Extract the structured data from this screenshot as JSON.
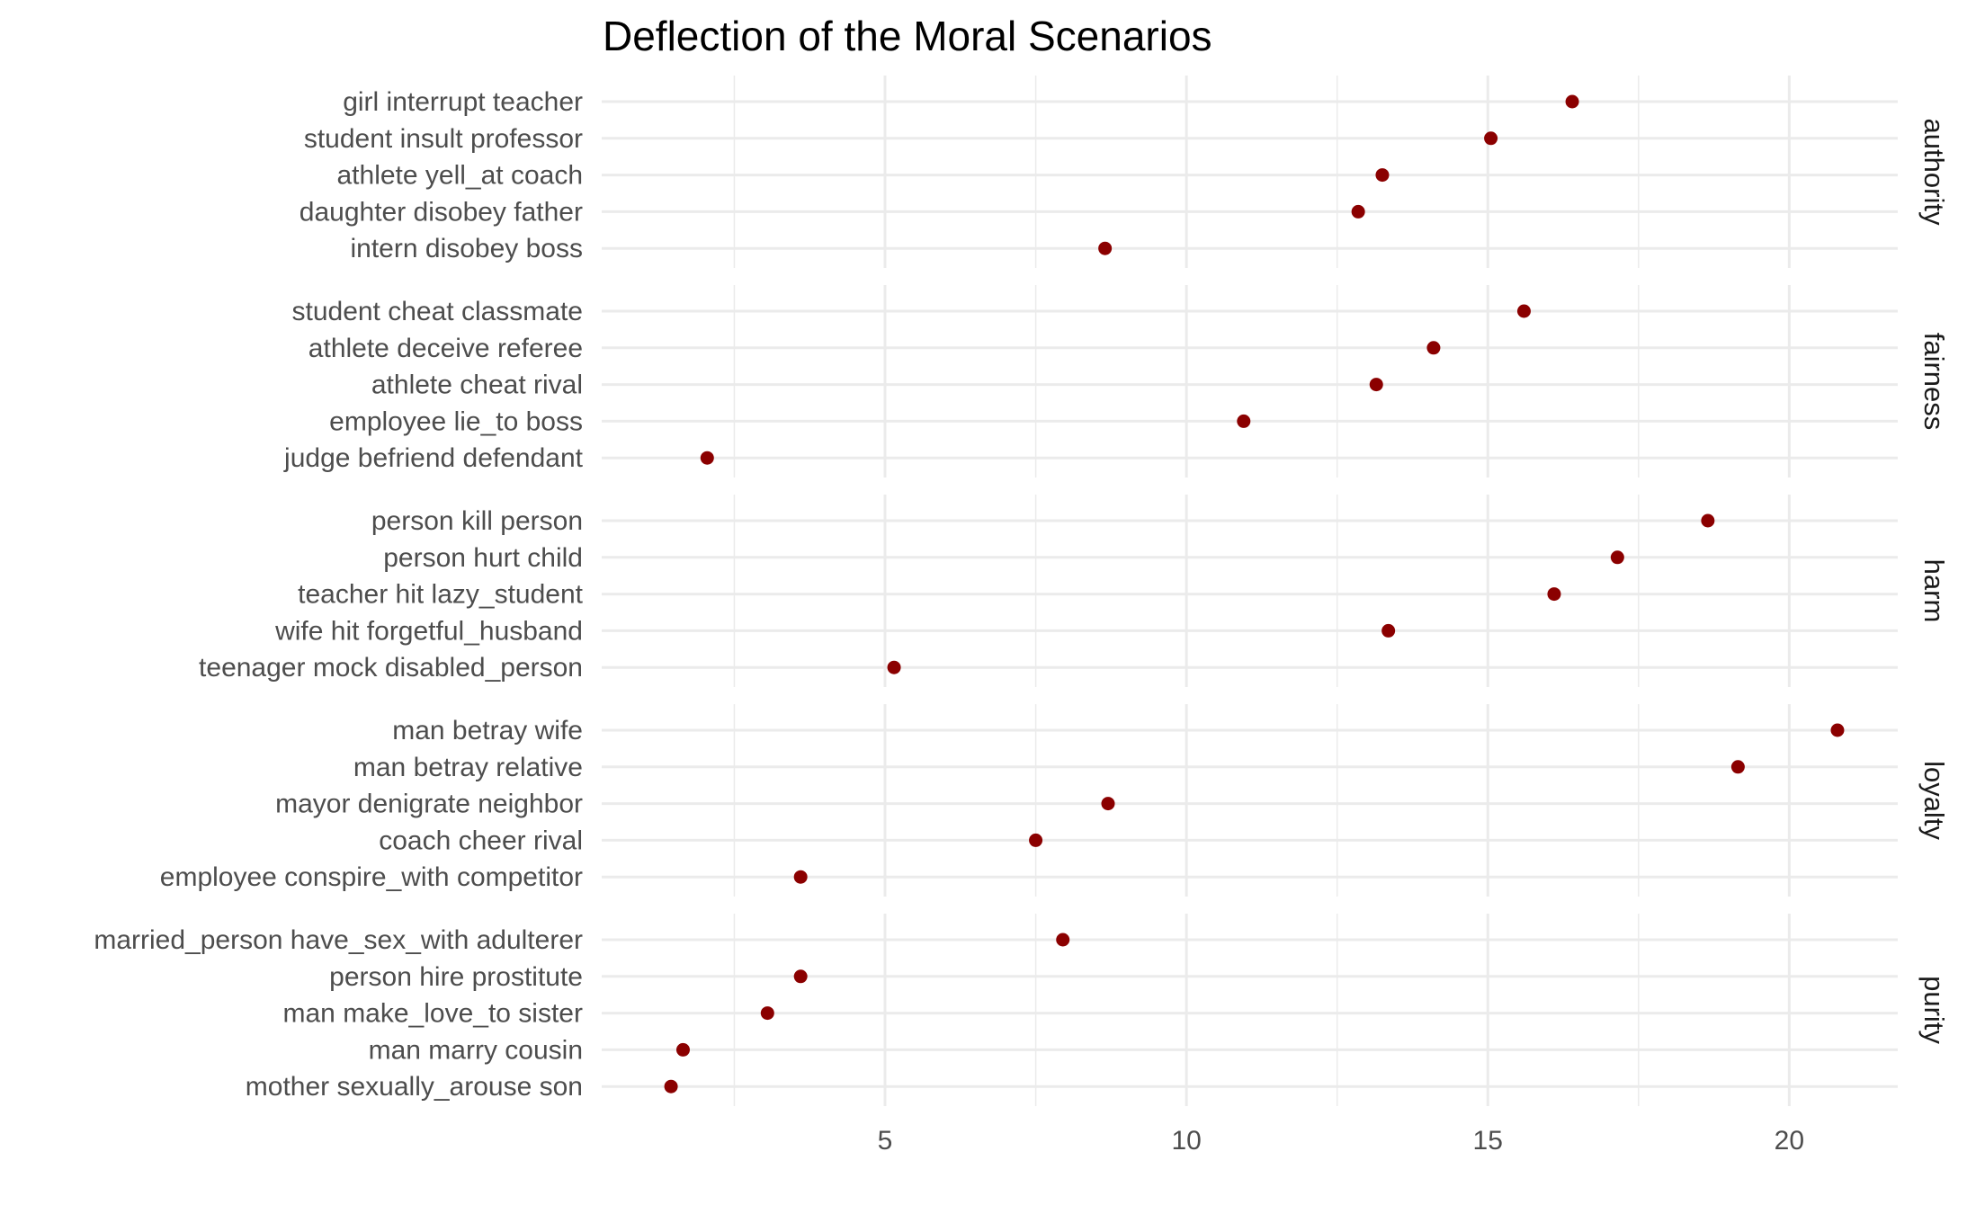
{
  "chart_data": {
    "type": "scatter",
    "title": "Deflection of the Moral Scenarios",
    "xlabel": "",
    "ylabel": "",
    "xlim": [
      0.3,
      21.8
    ],
    "x_ticks": [
      5,
      10,
      15,
      20
    ],
    "grid": true,
    "point_color": "#8b0000",
    "facets": [
      {
        "name": "authority",
        "points": [
          {
            "label": "girl interrupt teacher",
            "x": 16.4
          },
          {
            "label": "student insult professor",
            "x": 15.05
          },
          {
            "label": "athlete yell_at coach",
            "x": 13.25
          },
          {
            "label": "daughter disobey father",
            "x": 12.85
          },
          {
            "label": "intern disobey boss",
            "x": 8.65
          }
        ]
      },
      {
        "name": "fairness",
        "points": [
          {
            "label": "student cheat classmate",
            "x": 15.6
          },
          {
            "label": "athlete deceive referee",
            "x": 14.1
          },
          {
            "label": "athlete cheat rival",
            "x": 13.15
          },
          {
            "label": "employee lie_to boss",
            "x": 10.95
          },
          {
            "label": "judge befriend defendant",
            "x": 2.05
          }
        ]
      },
      {
        "name": "harm",
        "points": [
          {
            "label": "person kill person",
            "x": 18.65
          },
          {
            "label": "person hurt child",
            "x": 17.15
          },
          {
            "label": "teacher hit lazy_student",
            "x": 16.1
          },
          {
            "label": "wife hit forgetful_husband",
            "x": 13.35
          },
          {
            "label": "teenager mock disabled_person",
            "x": 5.15
          }
        ]
      },
      {
        "name": "loyalty",
        "points": [
          {
            "label": "man betray wife",
            "x": 20.8
          },
          {
            "label": "man betray relative",
            "x": 19.15
          },
          {
            "label": "mayor denigrate neighbor",
            "x": 8.7
          },
          {
            "label": "coach cheer rival",
            "x": 7.5
          },
          {
            "label": "employee conspire_with competitor",
            "x": 3.6
          }
        ]
      },
      {
        "name": "purity",
        "points": [
          {
            "label": "married_person have_sex_with adulterer",
            "x": 7.95
          },
          {
            "label": "person hire prostitute",
            "x": 3.6
          },
          {
            "label": "man make_love_to sister",
            "x": 3.05
          },
          {
            "label": "man marry cousin",
            "x": 1.65
          },
          {
            "label": "mother sexually_arouse son",
            "x": 1.45
          }
        ]
      }
    ]
  }
}
